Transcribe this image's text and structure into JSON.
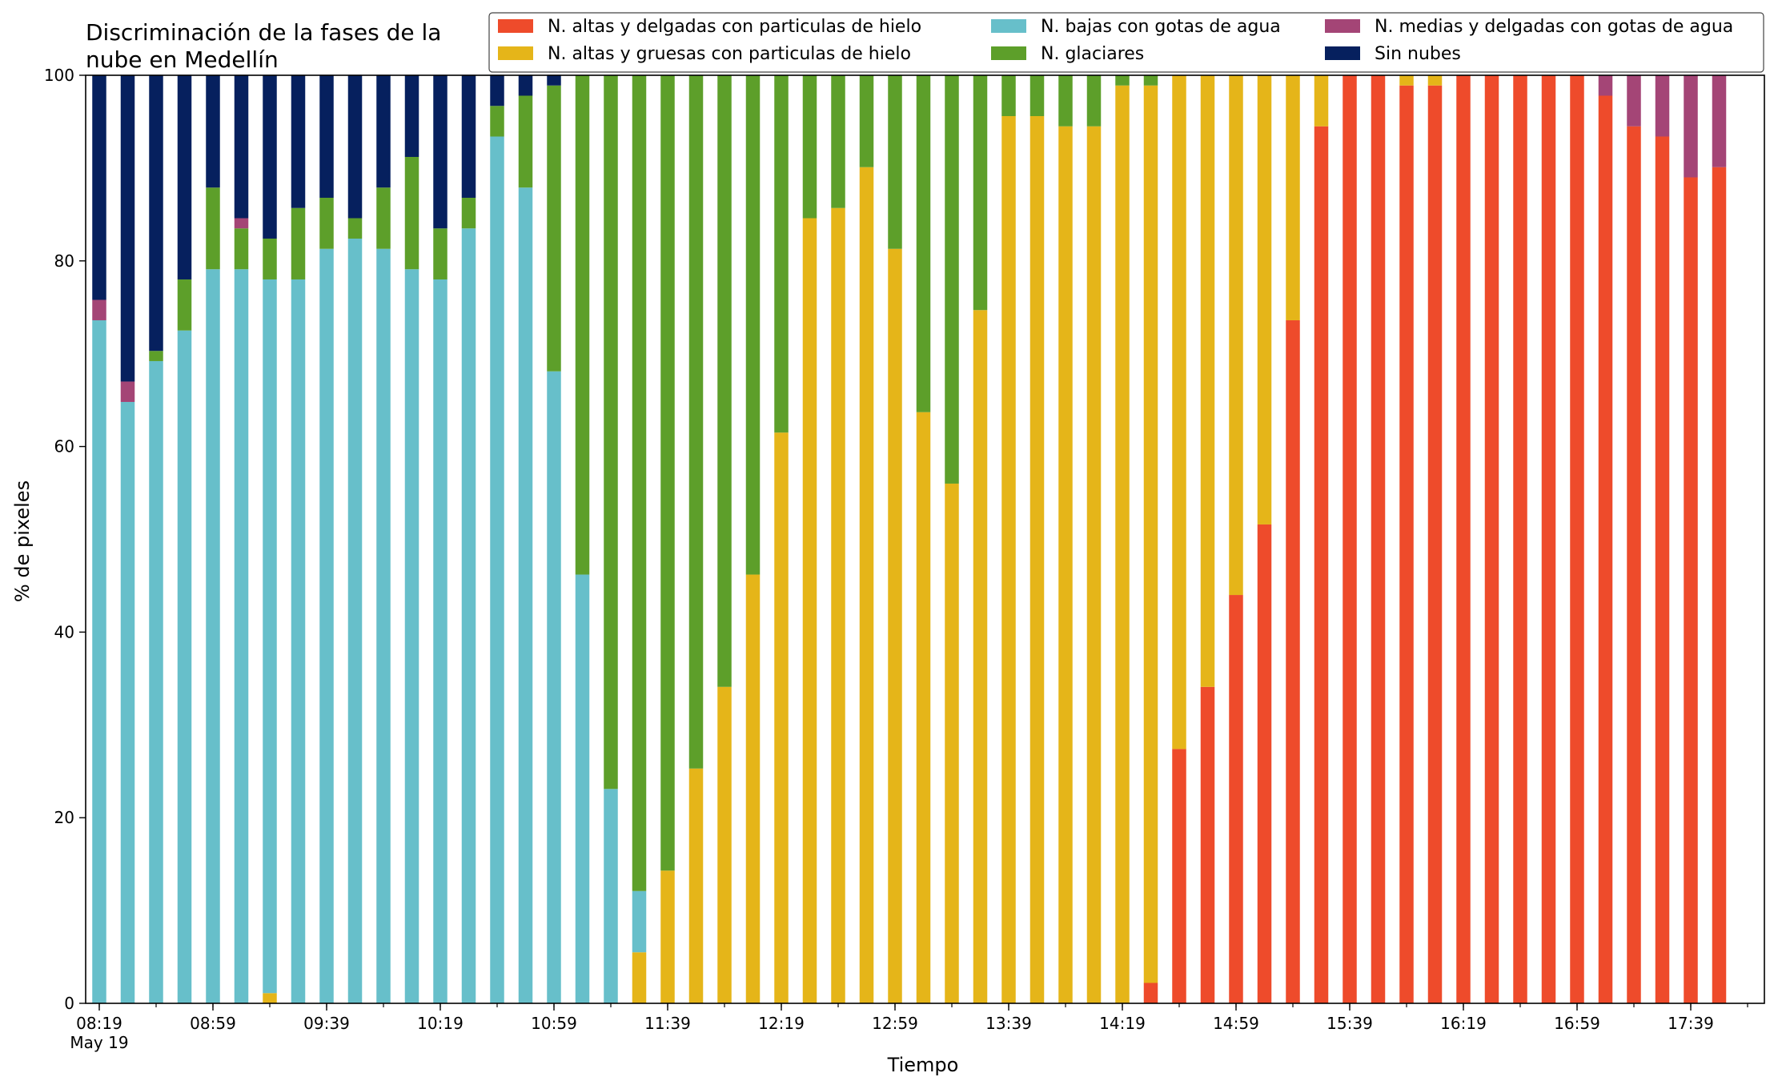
{
  "chart_data": {
    "type": "bar",
    "stacked": true,
    "title": "Discriminación de la fases de la nube en Medellín",
    "title_lines": [
      "Discriminación de la fases de la",
      "nube en Medellín"
    ],
    "xlabel": "Tiempo",
    "ylabel": "% de pixeles",
    "ylim": [
      0,
      100
    ],
    "yticks": [
      0,
      20,
      40,
      60,
      80,
      100
    ],
    "xtick_labels": [
      "08:19",
      "08:59",
      "09:39",
      "10:19",
      "10:59",
      "11:39",
      "12:19",
      "12:59",
      "13:39",
      "14:19",
      "14:59",
      "15:39",
      "16:19",
      "16:59",
      "17:39"
    ],
    "x_date_label": "May 19",
    "grid": false,
    "legend_position": "top",
    "series": [
      {
        "name": "N. altas y delgadas con particulas de hielo",
        "color": "#EE4B2B",
        "values": [
          0,
          0,
          0,
          0,
          0,
          0,
          0,
          0,
          0,
          0,
          0,
          0,
          0,
          0,
          0,
          0,
          0,
          0,
          0,
          0,
          0,
          0,
          0,
          0,
          0,
          0,
          0,
          0,
          0,
          0,
          0,
          0,
          0,
          0,
          0,
          0,
          0,
          2.2,
          27.4,
          34.1,
          44,
          51.6,
          73.6,
          94.5,
          100,
          100,
          98.9,
          98.9,
          100,
          100,
          100,
          100,
          100,
          97.8,
          94.5,
          93.4,
          89,
          90.1
        ]
      },
      {
        "name": "N. altas y gruesas con particulas de hielo",
        "color": "#E5B519",
        "values": [
          0,
          0,
          0,
          0,
          0,
          0,
          1.1,
          0,
          0,
          0,
          0,
          0,
          0,
          0,
          0,
          0,
          0,
          0,
          0,
          5.5,
          14.3,
          25.3,
          34.1,
          46.2,
          61.5,
          84.6,
          85.7,
          90.1,
          81.3,
          63.7,
          56,
          74.7,
          95.6,
          95.6,
          94.5,
          94.5,
          98.9,
          96.7,
          72.6,
          65.9,
          56,
          48.4,
          26.4,
          5.5,
          0,
          0,
          1.1,
          1.1,
          0,
          0,
          0,
          0,
          0,
          0,
          0,
          0,
          0,
          0
        ]
      },
      {
        "name": "N. bajas con gotas de agua",
        "color": "#67BFCA",
        "values": [
          73.6,
          64.8,
          69.2,
          72.5,
          79.1,
          79.1,
          76.9,
          78,
          81.3,
          82.4,
          81.3,
          79.1,
          78,
          83.5,
          93.4,
          87.9,
          68.1,
          46.2,
          23.1,
          6.6,
          0,
          0,
          0,
          0,
          0,
          0,
          0,
          0,
          0,
          0,
          0,
          0,
          0,
          0,
          0,
          0,
          0,
          0,
          0,
          0,
          0,
          0,
          0,
          0,
          0,
          0,
          0,
          0,
          0,
          0,
          0,
          0,
          0,
          0,
          0,
          0,
          0,
          0
        ]
      },
      {
        "name": "N. glaciares",
        "color": "#5D9F2A",
        "values": [
          0,
          0,
          1.1,
          5.5,
          8.8,
          4.4,
          4.4,
          7.7,
          5.5,
          2.2,
          6.6,
          12.1,
          5.5,
          3.3,
          3.3,
          9.9,
          30.8,
          53.8,
          76.9,
          87.9,
          85.7,
          74.7,
          65.9,
          53.8,
          38.5,
          15.4,
          14.3,
          9.9,
          18.7,
          36.3,
          44,
          25.3,
          4.4,
          4.4,
          5.5,
          5.5,
          1.1,
          1.1,
          0,
          0,
          0,
          0,
          0,
          0,
          0,
          0,
          0,
          0,
          0,
          0,
          0,
          0,
          0,
          0,
          0,
          0,
          0,
          0
        ]
      },
      {
        "name": "N. medias y delgadas con gotas de agua",
        "color": "#A44576",
        "values": [
          2.2,
          2.2,
          0,
          0,
          0,
          1.1,
          0,
          0,
          0,
          0,
          0,
          0,
          0,
          0,
          0,
          0,
          0,
          0,
          0,
          0,
          0,
          0,
          0,
          0,
          0,
          0,
          0,
          0,
          0,
          0,
          0,
          0,
          0,
          0,
          0,
          0,
          0,
          0,
          0,
          0,
          0,
          0,
          0,
          0,
          0,
          0,
          0,
          0,
          0,
          0,
          0,
          0,
          0,
          2.2,
          5.5,
          6.6,
          11,
          9.9
        ]
      },
      {
        "name": "Sin nubes",
        "color": "#06205E",
        "values": [
          24.2,
          33,
          29.7,
          22,
          12.1,
          15.4,
          17.6,
          14.3,
          13.2,
          15.4,
          12.1,
          8.8,
          16.5,
          13.2,
          3.3,
          2.2,
          1.1,
          0,
          0,
          0,
          0,
          0,
          0,
          0,
          0,
          0,
          0,
          0,
          0,
          0,
          0,
          0,
          0,
          0,
          0,
          0,
          0,
          0,
          0,
          0,
          0,
          0,
          0,
          0,
          0,
          0,
          0,
          0,
          0,
          0,
          0,
          0,
          0,
          0,
          0,
          0,
          0,
          0
        ]
      }
    ]
  }
}
